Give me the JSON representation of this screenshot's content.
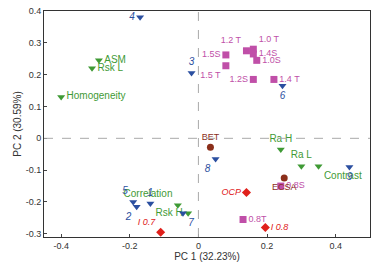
{
  "chart_data": {
    "type": "scatter",
    "x_label": "PC 1 (32.23%)",
    "y_label": "PC 2 (30.59%)",
    "xlim": [
      -0.45,
      0.5
    ],
    "ylim": [
      -0.31,
      0.4
    ],
    "xticks": [
      -0.4,
      -0.2,
      0,
      0.2,
      0.4
    ],
    "yticks": [
      -0.3,
      -0.2,
      -0.1,
      0,
      0.1,
      0.2,
      0.3,
      0.4
    ],
    "grid": false,
    "series": [
      {
        "color": "#3f9a35",
        "marker": "triangle-down",
        "labels": [
          "ASM",
          "Rsk L",
          "Homogeneity",
          "Ra H",
          "Ra L",
          "Contrast",
          "Correlation",
          "Rsk H"
        ],
        "x": [
          -0.29,
          -0.31,
          -0.4,
          0.24,
          0.3,
          0.35,
          -0.06,
          -0.03
        ],
        "y": [
          0.245,
          0.22,
          0.13,
          -0.035,
          -0.088,
          -0.088,
          -0.21,
          -0.235
        ]
      },
      {
        "color": "#2b4fa0",
        "marker": "triangle-down",
        "labels": [
          "4",
          "3",
          "6",
          "8",
          "9",
          "5",
          "1",
          "2",
          "7"
        ],
        "x": [
          -0.17,
          -0.02,
          0.245,
          0.05,
          0.44,
          -0.19,
          -0.14,
          -0.18,
          -0.045
        ],
        "y": [
          0.38,
          0.205,
          0.165,
          -0.065,
          -0.09,
          -0.2,
          -0.205,
          -0.215,
          -0.235
        ]
      },
      {
        "color": "#c04fa8",
        "marker": "square",
        "labels": [
          "1.5S",
          "1.2 T",
          "1.0 T",
          "1.4S",
          "1.0S",
          "1.5 T",
          "1.2S",
          "1.4 T",
          "0.8S",
          "0.8T"
        ],
        "x": [
          0.08,
          0.14,
          0.16,
          0.16,
          0.17,
          0.08,
          0.16,
          0.22,
          0.24,
          0.13
        ],
        "y": [
          0.262,
          0.275,
          0.28,
          0.265,
          0.245,
          0.228,
          0.185,
          0.185,
          -0.15,
          -0.255
        ]
      },
      {
        "color": "#8b2f1a",
        "marker": "circle",
        "labels": [
          "BET",
          "ECSA"
        ],
        "x": [
          0.035,
          0.25
        ],
        "y": [
          -0.028,
          -0.125
        ]
      },
      {
        "color": "#e0201b",
        "marker": "diamond",
        "labels": [
          "OCP",
          "I 0.7",
          "I 0.8"
        ],
        "x": [
          0.14,
          -0.11,
          0.195
        ],
        "y": [
          -0.17,
          -0.295,
          -0.28
        ]
      }
    ]
  }
}
